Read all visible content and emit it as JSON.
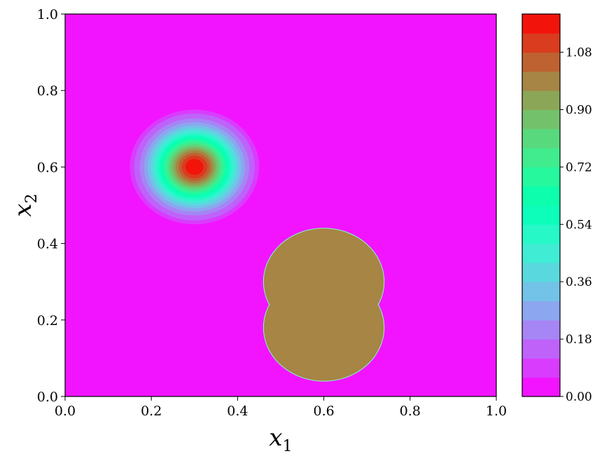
{
  "chart_data": {
    "type": "heatmap",
    "subtype": "filled-contour",
    "title": "",
    "xlabel": "x",
    "xlabel_sub": "1",
    "ylabel": "x",
    "ylabel_sub": "2",
    "xlim": [
      0.0,
      1.0
    ],
    "ylim": [
      0.0,
      1.0
    ],
    "xticks": [
      "0.0",
      "0.2",
      "0.4",
      "0.6",
      "0.8",
      "1.0"
    ],
    "yticks": [
      "0.0",
      "0.2",
      "0.4",
      "0.6",
      "0.8",
      "1.0"
    ],
    "xtick_values": [
      0.0,
      0.2,
      0.4,
      0.6,
      0.8,
      1.0
    ],
    "ytick_values": [
      0.0,
      0.2,
      0.4,
      0.6,
      0.8,
      1.0
    ],
    "grid": false,
    "colormap": "rainbow",
    "background_value": 0.0,
    "colorbar": {
      "range": [
        0.0,
        1.2
      ],
      "levels": 20,
      "ticks": [
        "0.00",
        "0.18",
        "0.36",
        "0.54",
        "0.72",
        "0.90",
        "1.08"
      ],
      "tick_values": [
        0.0,
        0.18,
        0.36,
        0.54,
        0.72,
        0.9,
        1.08
      ]
    },
    "features": [
      {
        "kind": "gaussian-hump",
        "center": [
          0.3,
          0.6
        ],
        "support_radius": 0.15,
        "peak_value": 1.2
      },
      {
        "kind": "cosine-hump-plateau",
        "components": [
          {
            "center": [
              0.6,
              0.3
            ],
            "radius": 0.14
          },
          {
            "center": [
              0.6,
              0.18
            ],
            "radius": 0.14
          }
        ],
        "value": 1.0
      }
    ]
  }
}
